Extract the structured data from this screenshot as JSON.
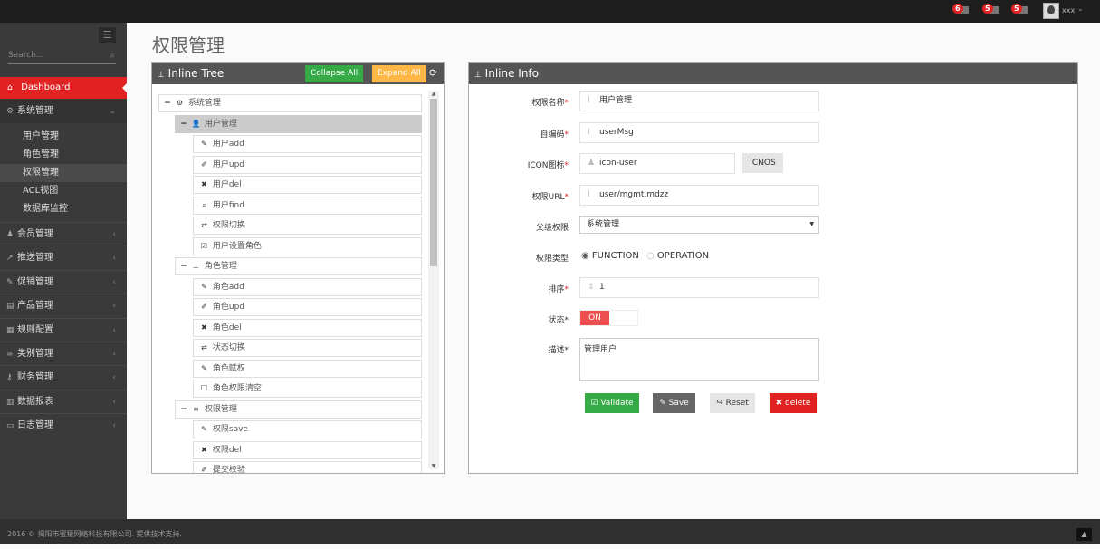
{
  "topbar": {
    "notifications": [
      {
        "count": "6",
        "icon": "bell-icon"
      },
      {
        "count": "5",
        "icon": "envelope-icon"
      },
      {
        "count": "5",
        "icon": "tasks-icon"
      }
    ],
    "username": "xxx"
  },
  "sidebar": {
    "search_placeholder": "Search...",
    "dashboard": "Dashboard",
    "system": {
      "label": "系统管理",
      "items": [
        "用户管理",
        "角色管理",
        "权限管理",
        "ACL视图",
        "数据库监控"
      ],
      "active": "权限管理"
    },
    "menus": [
      {
        "label": "会员管理",
        "icon": "user-icon"
      },
      {
        "label": "推送管理",
        "icon": "share-icon"
      },
      {
        "label": "促销管理",
        "icon": "pencil-icon"
      },
      {
        "label": "产品管理",
        "icon": "box-icon"
      },
      {
        "label": "规则配置",
        "icon": "list-alt-icon"
      },
      {
        "label": "类别管理",
        "icon": "bars-icon"
      },
      {
        "label": "财务管理",
        "icon": "key-icon"
      },
      {
        "label": "数据报表",
        "icon": "bar-chart-icon"
      },
      {
        "label": "日志管理",
        "icon": "credit-card-icon"
      }
    ]
  },
  "page": {
    "title": "权限管理"
  },
  "tree": {
    "title": "Inline Tree",
    "collapse_label": "Collapse All",
    "expand_label": "Expand All",
    "nodes": [
      {
        "level": 0,
        "label": "系统管理",
        "icon": "⚙",
        "toggle": "−"
      },
      {
        "level": 1,
        "label": "用户管理",
        "icon": "👤",
        "toggle": "−",
        "selected": true
      },
      {
        "level": 2,
        "label": "用户add",
        "icon": "✎"
      },
      {
        "level": 2,
        "label": "用户upd",
        "icon": "✐"
      },
      {
        "level": 2,
        "label": "用户del",
        "icon": "✖"
      },
      {
        "level": 2,
        "label": "用户find",
        "icon": "⌕"
      },
      {
        "level": 2,
        "label": "权限切换",
        "icon": "⇄"
      },
      {
        "level": 2,
        "label": "用户设置角色",
        "icon": "☑"
      },
      {
        "level": 1,
        "label": "角色管理",
        "icon": "⊥",
        "toggle": "−"
      },
      {
        "level": 2,
        "label": "角色add",
        "icon": "✎"
      },
      {
        "level": 2,
        "label": "角色upd",
        "icon": "✐"
      },
      {
        "level": 2,
        "label": "角色del",
        "icon": "✖"
      },
      {
        "level": 2,
        "label": "状态切换",
        "icon": "⇄"
      },
      {
        "level": 2,
        "label": "角色赋权",
        "icon": "✎"
      },
      {
        "level": 2,
        "label": "角色权限清空",
        "icon": "☐"
      },
      {
        "level": 1,
        "label": "权限管理",
        "icon": "≡",
        "toggle": "−"
      },
      {
        "level": 2,
        "label": "权限save",
        "icon": "✎"
      },
      {
        "level": 2,
        "label": "权限del",
        "icon": "✖"
      },
      {
        "level": 2,
        "label": "提交校验",
        "icon": "✐"
      }
    ]
  },
  "info": {
    "title": "Inline Info",
    "name_label": "权限名称",
    "name_value": "用户管理",
    "code_label": "自编码",
    "code_value": "userMsg",
    "icon_label": "ICON图标",
    "icon_value": "icon-user",
    "icons_button": "ICNOS",
    "url_label": "权限URL",
    "url_value": "user/mgmt.mdzz",
    "parent_label": "父级权限",
    "parent_value": "系统管理",
    "type_label": "权限类型",
    "type_options": [
      "FUNCTION",
      "OPERATION"
    ],
    "type_selected": "FUNCTION",
    "order_label": "排序",
    "order_value": "1",
    "status_label": "状态",
    "status_value": "ON",
    "desc_label": "描述",
    "desc_value": "管理用户",
    "buttons": {
      "validate": "Validate",
      "save": "Save",
      "reset": "Reset",
      "delete": "delete"
    }
  },
  "colors": {
    "accent": "#e02222",
    "green": "#35aa47",
    "orange": "#ffb848",
    "dark": "#555555"
  },
  "footer": {
    "text": "2016 © 揭阳市蜜獾网络科技有限公司. 提供技术支持."
  }
}
